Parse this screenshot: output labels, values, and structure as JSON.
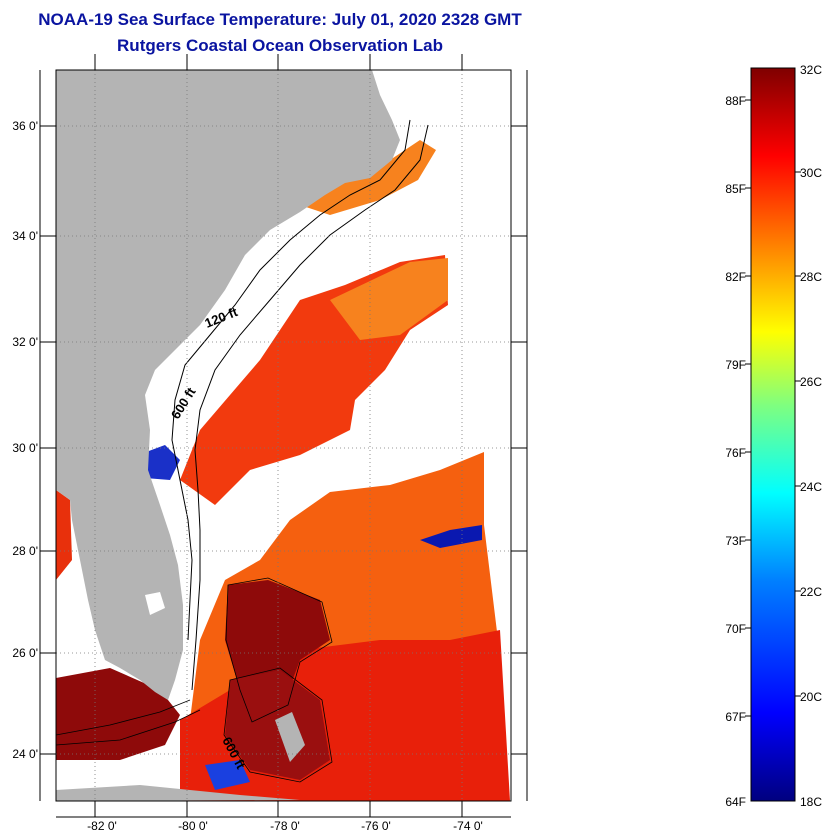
{
  "title": "NOAA-19 Sea Surface Temperature:  July 01, 2020 2328 GMT",
  "subtitle": "Rutgers Coastal Ocean Observation Lab",
  "map": {
    "lat_labels": [
      "36 0'",
      "34 0'",
      "32 0'",
      "30 0'",
      "28 0'",
      "26 0'",
      "24 0'"
    ],
    "lon_labels": [
      "-82 0'",
      "-80 0'",
      "-78 0'",
      "-76 0'",
      "-74 0'"
    ],
    "isobath_labels": [
      "120 ft",
      "600 ft",
      "600 ft"
    ],
    "land_color": "#b4b4b4",
    "cloud_color": "#ffffff"
  },
  "colorbar": {
    "top_c": "32C",
    "bottom_c": "18C",
    "c_labels": [
      "30C",
      "28C",
      "26C",
      "24C",
      "22C",
      "20C"
    ],
    "f_labels": [
      "88F",
      "85F",
      "82F",
      "79F",
      "76F",
      "73F",
      "70F",
      "67F",
      "64F"
    ],
    "colors": [
      "#00007f",
      "#0000ff",
      "#007fff",
      "#00ffff",
      "#7fff7f",
      "#ffff00",
      "#ff7f00",
      "#ff0000",
      "#7f0000"
    ]
  }
}
